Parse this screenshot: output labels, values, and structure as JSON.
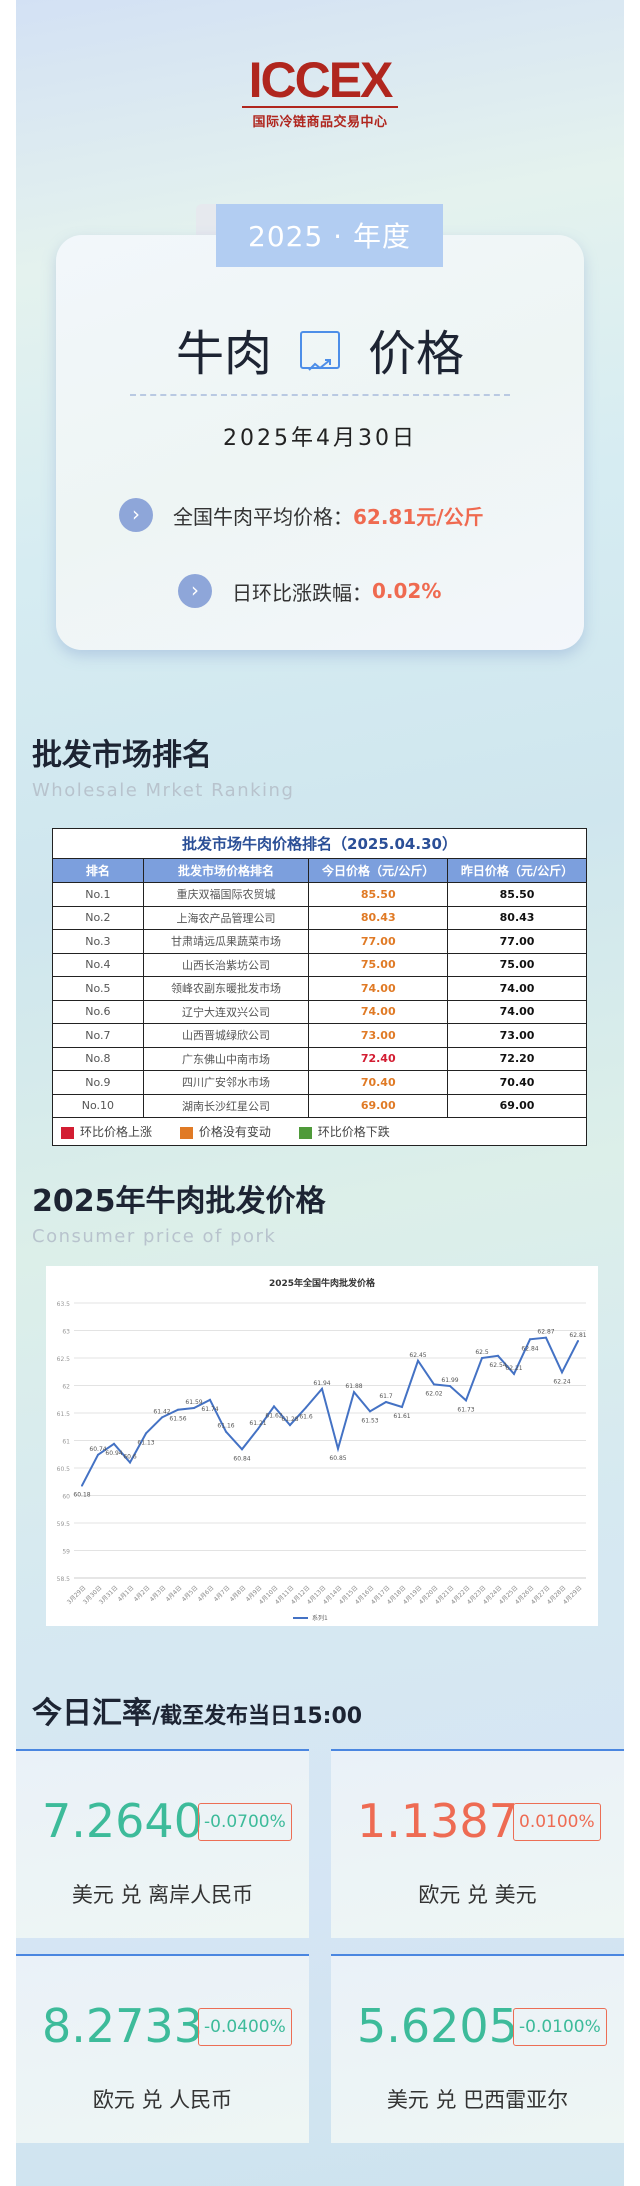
{
  "logo": {
    "mark": "ICCEX",
    "subtitle": "国际冷链商品交易中心"
  },
  "header": {
    "year_tab": "2025 · 年度",
    "title_left": "牛肉",
    "title_right": "价格",
    "date": "2025年4月30日",
    "avg_label": "全国牛肉平均价格：",
    "avg_value": "62.81元/公斤",
    "change_label": "日环比涨跌幅：",
    "change_value": "0.02%"
  },
  "ranking": {
    "title": "批发市场排名",
    "subtitle": "Wholesale Mrket Ranking",
    "table_title": "批发市场牛肉价格排名（2025.04.30）",
    "headers": [
      "排名",
      "批发市场价格排名",
      "今日价格（元/公斤）",
      "昨日价格（元/公斤）"
    ],
    "rows": [
      {
        "rank": "No.1",
        "market": "重庆双福国际农贸城",
        "today": "85.50",
        "yesterday": "85.50",
        "trend": "flat"
      },
      {
        "rank": "No.2",
        "market": "上海农产品管理公司",
        "today": "80.43",
        "yesterday": "80.43",
        "trend": "flat"
      },
      {
        "rank": "No.3",
        "market": "甘肃靖远瓜果蔬菜市场",
        "today": "77.00",
        "yesterday": "77.00",
        "trend": "flat"
      },
      {
        "rank": "No.4",
        "market": "山西长治紫坊公司",
        "today": "75.00",
        "yesterday": "75.00",
        "trend": "flat"
      },
      {
        "rank": "No.5",
        "market": "领峰农副东暖批发市场",
        "today": "74.00",
        "yesterday": "74.00",
        "trend": "flat"
      },
      {
        "rank": "No.6",
        "market": "辽宁大连双兴公司",
        "today": "74.00",
        "yesterday": "74.00",
        "trend": "flat"
      },
      {
        "rank": "No.7",
        "market": "山西晋城绿欣公司",
        "today": "73.00",
        "yesterday": "73.00",
        "trend": "flat"
      },
      {
        "rank": "No.8",
        "market": "广东佛山中南市场",
        "today": "72.40",
        "yesterday": "72.20",
        "trend": "up"
      },
      {
        "rank": "No.9",
        "market": "四川广安邻水市场",
        "today": "70.40",
        "yesterday": "70.40",
        "trend": "flat"
      },
      {
        "rank": "No.10",
        "market": "湖南长沙红星公司",
        "today": "69.00",
        "yesterday": "69.00",
        "trend": "flat"
      }
    ],
    "legend": [
      {
        "label": "环比价格上涨",
        "color": "#d31d32"
      },
      {
        "label": "价格没有变动",
        "color": "#e07a25"
      },
      {
        "label": "环比价格下跌",
        "color": "#4f9a3a"
      }
    ]
  },
  "price_section": {
    "title": "2025年牛肉批发价格",
    "subtitle": "Consumer price of pork"
  },
  "chart_data": {
    "type": "line",
    "title": "2025年全国牛肉批发价格",
    "xlabel": "",
    "ylabel": "",
    "ylim": [
      58.5,
      63.5
    ],
    "yticks": [
      "58.5",
      "59",
      "59.5",
      "60",
      "60.5",
      "61",
      "61.5",
      "62",
      "62.5",
      "63",
      "63.5"
    ],
    "grid": true,
    "legend_position": "bottom",
    "categories": [
      "3月29日",
      "3月30日",
      "3月31日",
      "4月1日",
      "4月2日",
      "4月3日",
      "4月4日",
      "4月5日",
      "4月6日",
      "4月7日",
      "4月8日",
      "4月9日",
      "4月10日",
      "4月11日",
      "4月12日",
      "4月13日",
      "4月14日",
      "4月15日",
      "4月16日",
      "4月17日",
      "4月18日",
      "4月19日",
      "4月20日",
      "4月21日",
      "4月22日",
      "4月23日",
      "4月24日",
      "4月25日",
      "4月26日",
      "4月27日",
      "4月28日",
      "4月29日"
    ],
    "series": [
      {
        "name": "系列1",
        "color": "#4472c4",
        "values": [
          60.18,
          60.74,
          60.94,
          60.6,
          61.13,
          61.42,
          61.56,
          61.59,
          61.74,
          61.16,
          60.84,
          61.21,
          61.62,
          61.28,
          61.6,
          61.94,
          60.85,
          61.88,
          61.53,
          61.7,
          61.61,
          62.45,
          62.02,
          61.99,
          61.73,
          62.5,
          62.54,
          62.21,
          62.84,
          62.87,
          62.24,
          62.81
        ]
      }
    ]
  },
  "fx": {
    "title": "今日汇率",
    "subtitle": "/截至发布当日15:00",
    "cards": [
      {
        "value": "7.2640",
        "change": "-0.0700%",
        "pair": "美元 兑 离岸人民币",
        "dir": "down"
      },
      {
        "value": "1.1387",
        "change": "0.0100%",
        "pair": "欧元 兑 美元",
        "dir": "up"
      },
      {
        "value": "8.2733",
        "change": "-0.0400%",
        "pair": "欧元 兑 人民币",
        "dir": "down"
      },
      {
        "value": "5.6205",
        "change": "-0.0100%",
        "pair": "美元 兑 巴西雷亚尔",
        "dir": "down"
      }
    ]
  }
}
